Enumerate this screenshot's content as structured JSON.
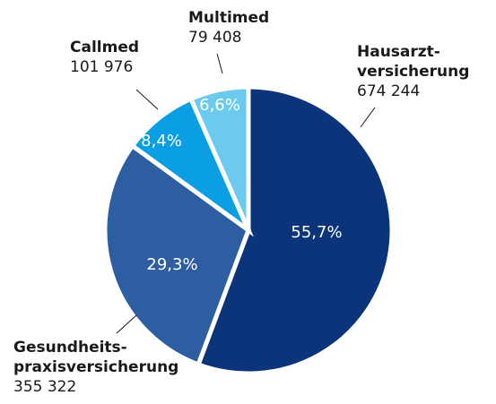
{
  "chart_data": {
    "type": "pie",
    "categories": [
      "Hausarzt-versicherung",
      "Gesundheits-praxisversicherung",
      "Callmed",
      "Multimed"
    ],
    "values": [
      674244,
      355322,
      101976,
      79408
    ],
    "value_labels": [
      "674 244",
      "355 322",
      "101 976",
      "79 408"
    ],
    "percents": [
      55.7,
      29.3,
      8.4,
      6.6
    ],
    "percent_labels": [
      "55,7%",
      "29,3%",
      "8,4%",
      "6,6%"
    ],
    "colors": [
      "#0b347a",
      "#2e5ea2",
      "#0a9ee2",
      "#6ccaef"
    ]
  }
}
